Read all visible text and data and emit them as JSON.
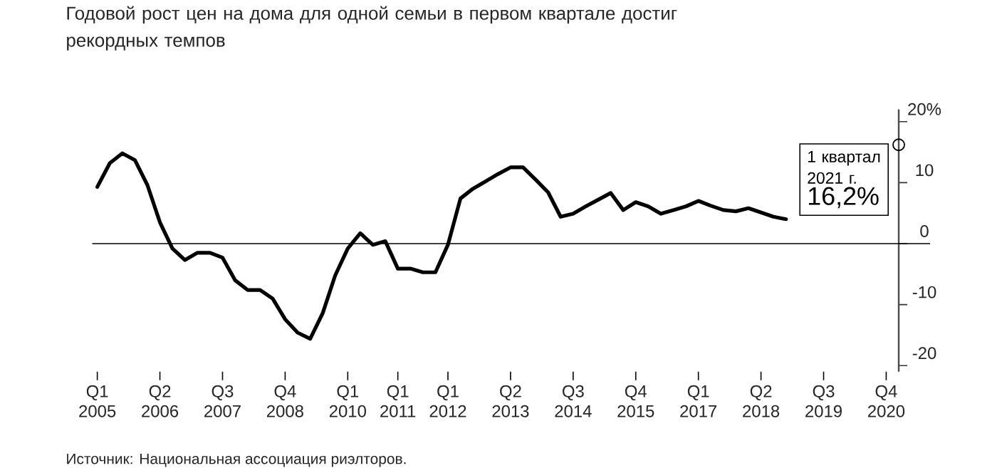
{
  "chart_data": {
    "type": "line",
    "title": "Годовой рост цен на дома для одной семьи в первом квартале достиг рекордных темпов",
    "categories": [
      "Q1 2005",
      null,
      null,
      null,
      null,
      "Q2 2006",
      null,
      null,
      null,
      null,
      "Q3 2007",
      null,
      null,
      null,
      null,
      "Q4 2008",
      null,
      null,
      null,
      null,
      "Q1 2010",
      null,
      null,
      null,
      "Q1 2011",
      null,
      null,
      null,
      "Q1 2012",
      null,
      null,
      null,
      null,
      "Q2 2013",
      null,
      null,
      null,
      null,
      "Q3 2014",
      null,
      null,
      null,
      null,
      "Q4 2015",
      null,
      null,
      null,
      null,
      "Q1 2017",
      null,
      null,
      null,
      null,
      "Q2 2018",
      null,
      null,
      null,
      null,
      "Q3 2019",
      null,
      null,
      null,
      null,
      "Q4 2020",
      null
    ],
    "series": [
      {
        "color": "#000000",
        "values": [
          9.3,
          13.2,
          14.8,
          13.7,
          9.6,
          3.5,
          -0.8,
          -2.7,
          -1.5,
          -1.5,
          -2.3,
          -6.0,
          -7.6,
          -7.6,
          -9.0,
          -12.4,
          -14.6,
          -15.6,
          -11.4,
          -5.2,
          -0.8,
          1.7,
          -0.2,
          0.4,
          -4.1,
          -4.1,
          -4.7,
          -4.7,
          -0.2,
          7.4,
          9.0,
          10.2,
          11.4,
          12.5,
          12.5,
          10.5,
          8.4,
          4.4,
          4.9,
          6.1,
          7.2,
          8.3,
          5.5,
          6.8,
          6.1,
          4.9,
          5.5,
          6.1,
          7.0,
          6.2,
          5.5,
          5.3,
          5.8,
          5.1,
          4.4,
          4.0,
          null,
          null,
          null,
          null,
          null,
          null,
          null,
          null,
          16.2
        ]
      }
    ],
    "ylim": [
      -21,
      22
    ],
    "yticks": [
      -20,
      -10,
      0,
      10,
      {
        "value": 20,
        "label": "20%"
      }
    ],
    "ref_lines": [
      {
        "axis": "y",
        "value": 0,
        "color": "#000000"
      }
    ],
    "annotations": [
      "1 квартал 2021 г.",
      "16,2%",
      "Источник: Национальная ассоциация риэлторов."
    ],
    "grid": false,
    "marker": "none",
    "line_style": "solid"
  }
}
